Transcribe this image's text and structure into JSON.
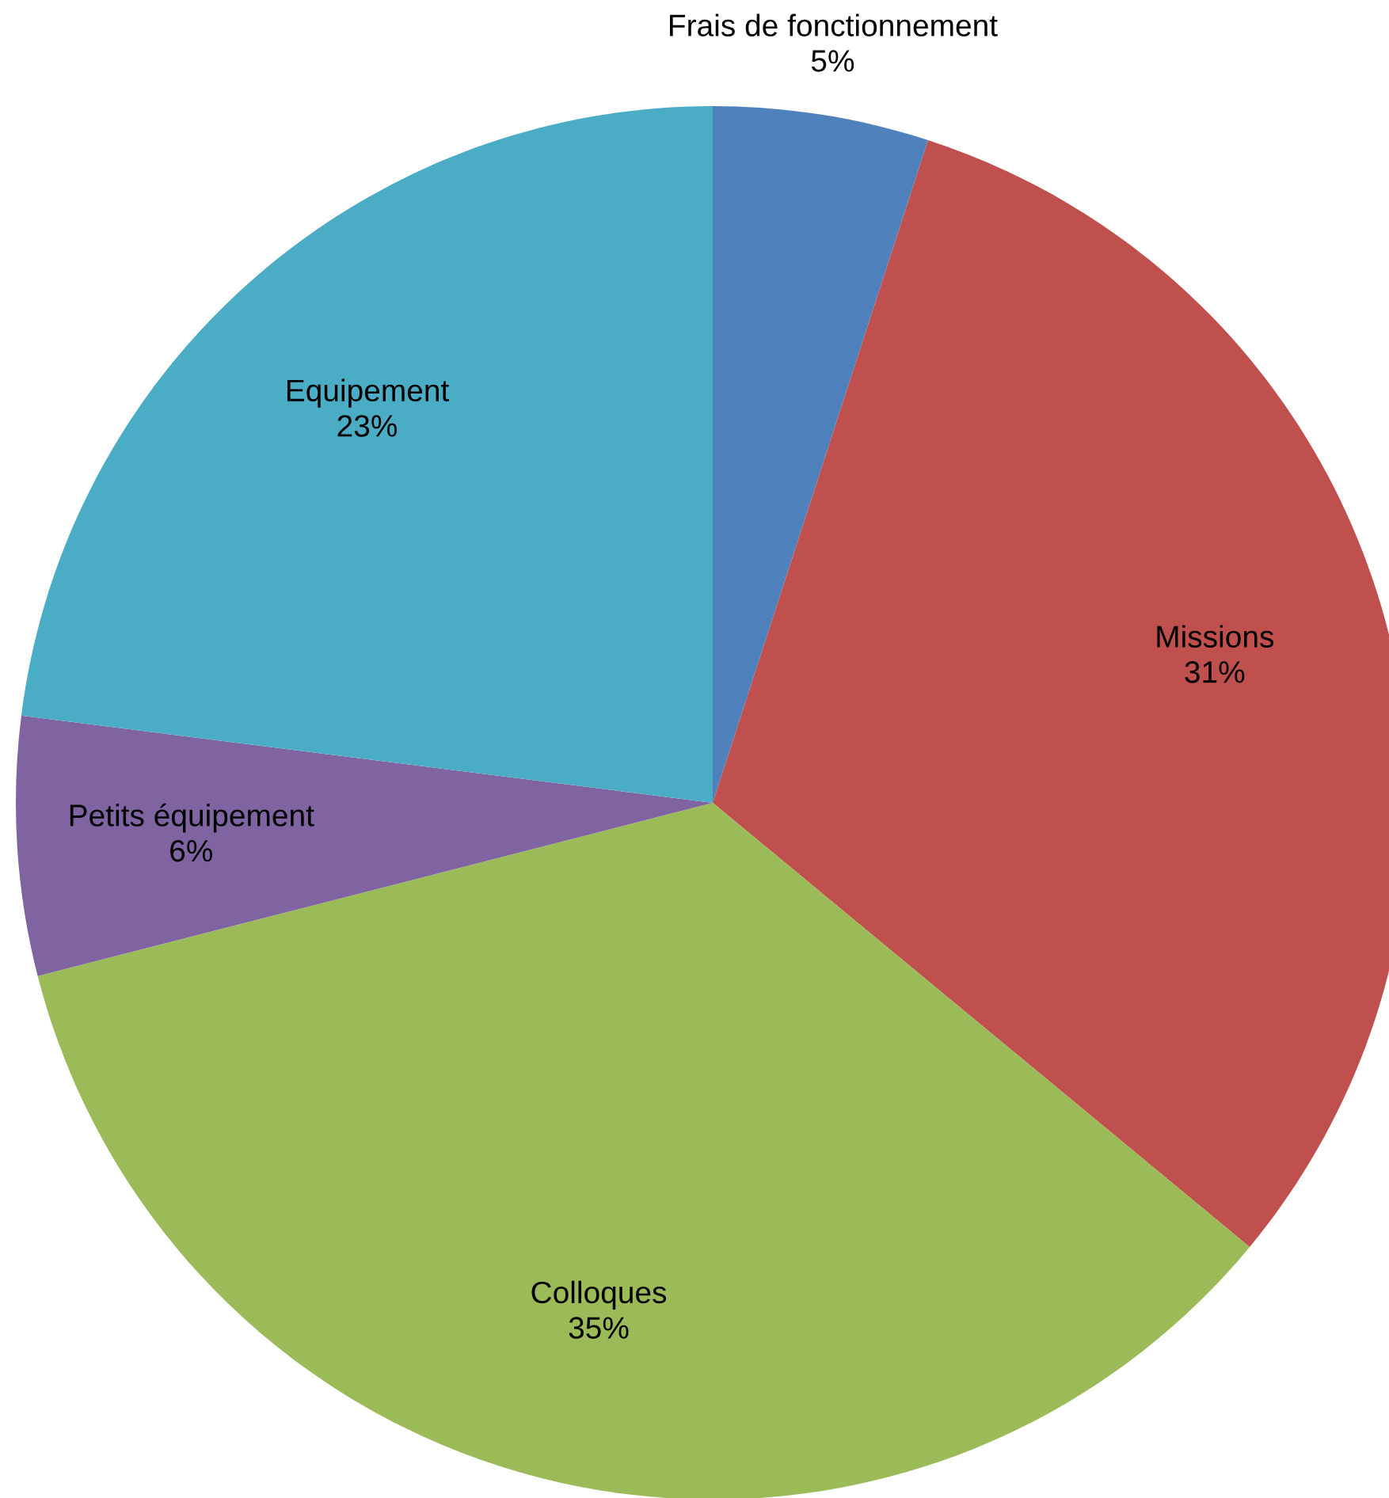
{
  "chart_data": {
    "type": "pie",
    "categories": [
      "Frais de fonctionnement",
      "Missions",
      "Colloques",
      "Petits équipement",
      "Equipement"
    ],
    "values": [
      5,
      31,
      35,
      6,
      23
    ],
    "colors": [
      "#4f81bd",
      "#c0504d",
      "#9bbb59",
      "#8064a2",
      "#4bacc6"
    ],
    "value_labels": [
      "5%",
      "31%",
      "35%",
      "6%",
      "23%"
    ],
    "legend": false
  }
}
